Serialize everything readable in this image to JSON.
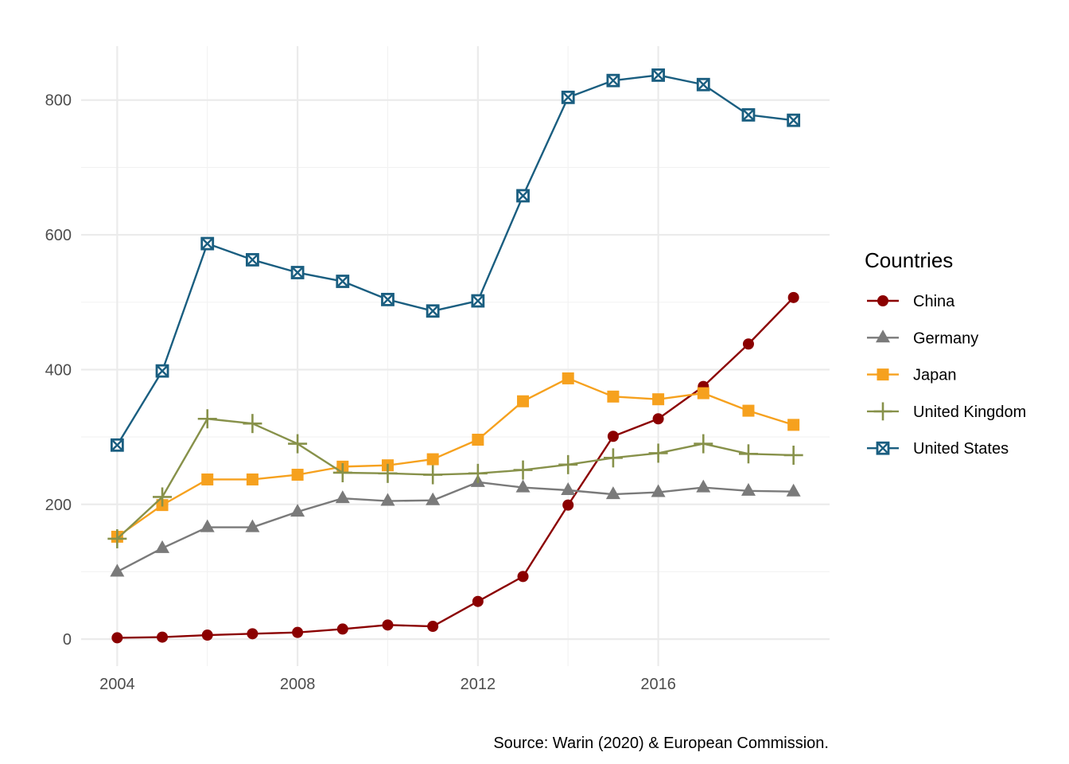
{
  "chart_data": {
    "type": "line",
    "title": "",
    "xlabel": "",
    "ylabel": "",
    "caption": "Source: Warin (2020) & European Commission.",
    "legend_title": "Countries",
    "legend_position": "right",
    "grid": true,
    "xlim": [
      2003.2,
      2019.8
    ],
    "ylim": [
      -40,
      880
    ],
    "x_ticks": [
      2004,
      2008,
      2012,
      2016
    ],
    "y_ticks": [
      0,
      200,
      400,
      600,
      800
    ],
    "x": [
      2004,
      2005,
      2006,
      2007,
      2008,
      2009,
      2010,
      2011,
      2012,
      2013,
      2014,
      2015,
      2016,
      2017,
      2018,
      2019
    ],
    "series": [
      {
        "name": "China",
        "color": "#8B0000",
        "marker": "circle",
        "values": [
          2,
          3,
          6,
          8,
          10,
          15,
          21,
          19,
          56,
          93,
          199,
          301,
          327,
          375,
          438,
          507
        ]
      },
      {
        "name": "Germany",
        "color": "#7a7a7a",
        "marker": "triangle",
        "values": [
          100,
          135,
          166,
          166,
          189,
          209,
          205,
          206,
          233,
          225,
          221,
          215,
          218,
          225,
          220,
          219
        ]
      },
      {
        "name": "Japan",
        "color": "#f6a11e",
        "marker": "square",
        "values": [
          152,
          199,
          237,
          237,
          244,
          256,
          258,
          267,
          296,
          353,
          387,
          360,
          356,
          365,
          339,
          318
        ]
      },
      {
        "name": "United Kingdom",
        "color": "#87914a",
        "marker": "plus",
        "values": [
          149,
          211,
          327,
          320,
          290,
          247,
          246,
          244,
          246,
          251,
          259,
          269,
          276,
          290,
          275,
          273
        ]
      },
      {
        "name": "United States",
        "color": "#1a5e80",
        "marker": "boxcross",
        "values": [
          288,
          398,
          587,
          563,
          544,
          531,
          504,
          487,
          502,
          658,
          804,
          829,
          837,
          823,
          778,
          770
        ]
      }
    ]
  }
}
